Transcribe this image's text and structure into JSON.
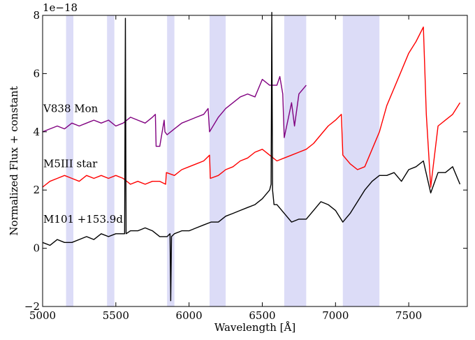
{
  "chart_data": {
    "type": "line",
    "xlabel": "Wavelength [Å]",
    "ylabel": "Normalized Flux + constant",
    "offset_text": "1e−18",
    "xlim": [
      5000,
      7900
    ],
    "ylim": [
      -2,
      8
    ],
    "x_ticks": [
      5000,
      5500,
      6000,
      6500,
      7000,
      7500
    ],
    "y_ticks": [
      -2,
      0,
      2,
      4,
      6,
      8
    ],
    "grid": false,
    "shaded_bands": [
      {
        "x0": 5160,
        "x1": 5210
      },
      {
        "x0": 5440,
        "x1": 5490
      },
      {
        "x0": 5850,
        "x1": 5900
      },
      {
        "x0": 6140,
        "x1": 6250
      },
      {
        "x0": 6650,
        "x1": 6800
      },
      {
        "x0": 7050,
        "x1": 7300
      }
    ],
    "band_color": "#dcdcf7",
    "series": [
      {
        "name": "V838 Mon",
        "color": "#800080",
        "x": [
          5000,
          5050,
          5100,
          5150,
          5200,
          5250,
          5300,
          5350,
          5400,
          5450,
          5500,
          5550,
          5600,
          5650,
          5700,
          5750,
          5770,
          5775,
          5800,
          5830,
          5835,
          5850,
          5900,
          5950,
          6000,
          6050,
          6100,
          6130,
          6140,
          6200,
          6250,
          6300,
          6350,
          6400,
          6450,
          6500,
          6550,
          6600,
          6620,
          6640,
          6650,
          6700,
          6720,
          6750,
          6800
        ],
        "y": [
          4.0,
          4.1,
          4.2,
          4.1,
          4.3,
          4.2,
          4.3,
          4.4,
          4.3,
          4.4,
          4.2,
          4.3,
          4.5,
          4.4,
          4.3,
          4.5,
          4.6,
          3.5,
          3.5,
          4.4,
          4.0,
          3.9,
          4.1,
          4.3,
          4.4,
          4.5,
          4.6,
          4.8,
          4.0,
          4.5,
          4.8,
          5.0,
          5.2,
          5.3,
          5.2,
          5.8,
          5.6,
          5.6,
          5.9,
          5.3,
          3.8,
          5.0,
          4.2,
          5.3,
          5.6
        ]
      },
      {
        "name": "M5III star",
        "color": "#ff0000",
        "x": [
          5000,
          5050,
          5100,
          5150,
          5200,
          5250,
          5300,
          5350,
          5400,
          5450,
          5500,
          5550,
          5600,
          5650,
          5700,
          5750,
          5800,
          5840,
          5845,
          5900,
          5950,
          6000,
          6050,
          6100,
          6140,
          6145,
          6200,
          6250,
          6300,
          6350,
          6400,
          6450,
          6500,
          6550,
          6600,
          6650,
          6700,
          6750,
          6800,
          6850,
          6900,
          6950,
          7000,
          7040,
          7050,
          7100,
          7150,
          7200,
          7250,
          7300,
          7350,
          7400,
          7450,
          7500,
          7550,
          7580,
          7600,
          7620,
          7650,
          7700,
          7750,
          7800,
          7850
        ],
        "y": [
          2.1,
          2.3,
          2.4,
          2.5,
          2.4,
          2.3,
          2.5,
          2.4,
          2.5,
          2.4,
          2.5,
          2.4,
          2.2,
          2.3,
          2.2,
          2.3,
          2.3,
          2.2,
          2.6,
          2.5,
          2.7,
          2.8,
          2.9,
          3.0,
          3.2,
          2.4,
          2.5,
          2.7,
          2.8,
          3.0,
          3.1,
          3.3,
          3.4,
          3.2,
          3.0,
          3.1,
          3.2,
          3.3,
          3.4,
          3.6,
          3.9,
          4.2,
          4.4,
          4.6,
          3.2,
          2.9,
          2.7,
          2.8,
          3.4,
          4.0,
          4.9,
          5.5,
          6.1,
          6.7,
          7.1,
          7.4,
          7.6,
          4.6,
          2.1,
          4.2,
          4.4,
          4.6,
          5.0
        ]
      },
      {
        "name": "M101 +153.9d",
        "color": "#000000",
        "x": [
          5000,
          5050,
          5100,
          5150,
          5200,
          5250,
          5300,
          5350,
          5400,
          5450,
          5500,
          5550,
          5560,
          5565,
          5570,
          5600,
          5650,
          5700,
          5750,
          5800,
          5850,
          5870,
          5875,
          5880,
          5900,
          5950,
          6000,
          6050,
          6100,
          6150,
          6200,
          6250,
          6300,
          6350,
          6400,
          6450,
          6500,
          6550,
          6560,
          6565,
          6570,
          6580,
          6600,
          6650,
          6700,
          6750,
          6800,
          6850,
          6900,
          6950,
          7000,
          7050,
          7100,
          7150,
          7200,
          7250,
          7300,
          7350,
          7400,
          7450,
          7500,
          7550,
          7600,
          7650,
          7700,
          7750,
          7800,
          7850
        ],
        "y": [
          0.2,
          0.1,
          0.3,
          0.2,
          0.2,
          0.3,
          0.4,
          0.3,
          0.5,
          0.4,
          0.5,
          0.5,
          0.5,
          7.9,
          0.5,
          0.6,
          0.6,
          0.7,
          0.6,
          0.4,
          0.4,
          0.5,
          -1.8,
          0.4,
          0.5,
          0.6,
          0.6,
          0.7,
          0.8,
          0.9,
          0.9,
          1.1,
          1.2,
          1.3,
          1.4,
          1.5,
          1.7,
          2.0,
          2.2,
          8.1,
          2.0,
          1.5,
          1.5,
          1.2,
          0.9,
          1.0,
          1.0,
          1.3,
          1.6,
          1.5,
          1.3,
          0.9,
          1.2,
          1.6,
          2.0,
          2.3,
          2.5,
          2.5,
          2.6,
          2.3,
          2.7,
          2.8,
          3.0,
          1.9,
          2.6,
          2.6,
          2.8,
          2.2
        ]
      }
    ],
    "annotations": [
      {
        "text": "V838 Mon",
        "x": 5005,
        "y": 4.8
      },
      {
        "text": "M5III star",
        "x": 5005,
        "y": 2.9
      },
      {
        "text": "M101 +153.9d",
        "x": 5005,
        "y": 1.0
      }
    ]
  }
}
